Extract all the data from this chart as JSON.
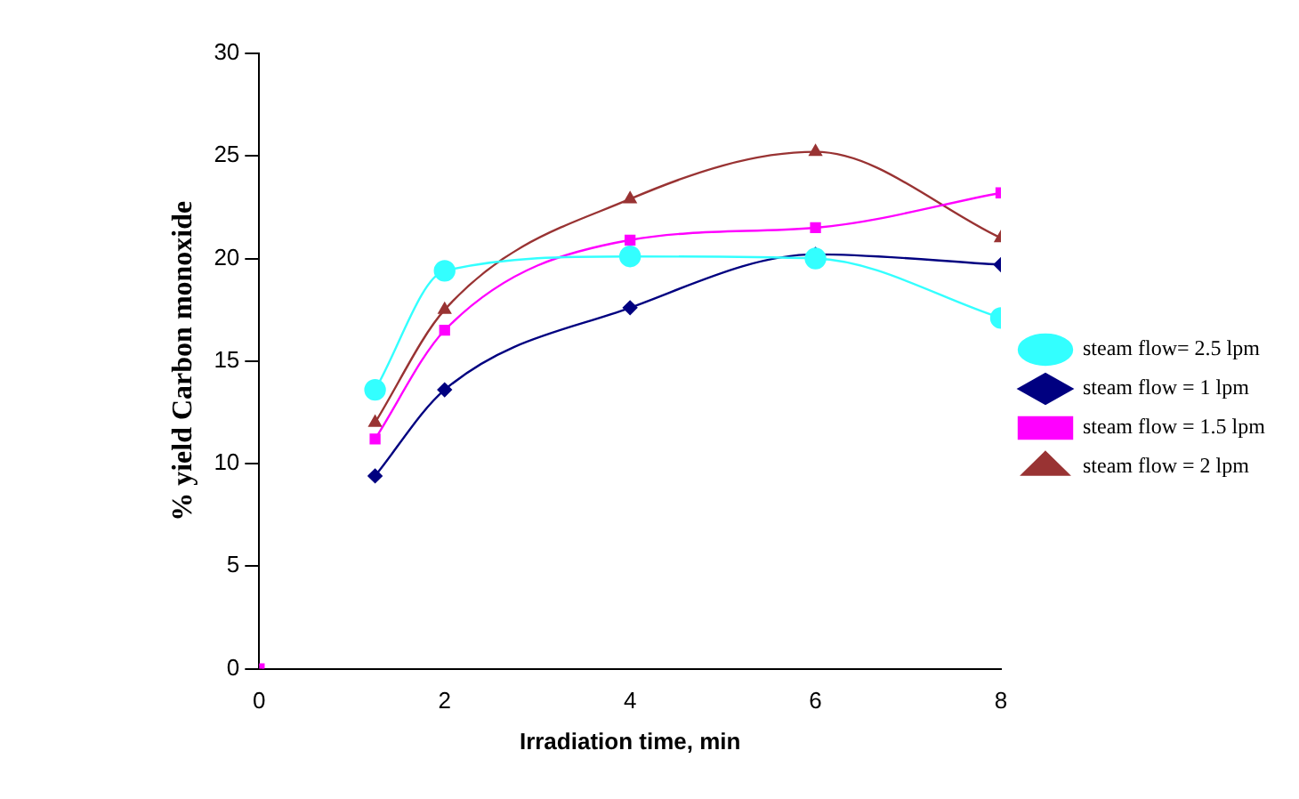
{
  "chart_data": {
    "type": "line",
    "xlabel": "Irradiation time, min",
    "ylabel": "% yield Carbon monoxide",
    "xlim": [
      0,
      8
    ],
    "xticks": [
      0,
      2,
      4,
      6,
      8
    ],
    "ylim": [
      0,
      30
    ],
    "yticks": [
      0,
      5,
      10,
      15,
      20,
      25,
      30
    ],
    "grid": false,
    "legend": "right",
    "line_style": "solid",
    "series": [
      {
        "name": "steam flow = 1 lpm",
        "color": "#000080",
        "marker": "diamond",
        "x": [
          1.25,
          2,
          4,
          6,
          8
        ],
        "values": [
          9.4,
          13.6,
          17.6,
          20.2,
          19.7
        ]
      },
      {
        "name": "steam flow = 1.5 lpm",
        "color": "#ff00ff",
        "marker": "square",
        "x": [
          1.25,
          2,
          4,
          6,
          8
        ],
        "values": [
          11.2,
          16.5,
          20.9,
          21.5,
          23.2
        ]
      },
      {
        "name": "steam flow = 2 lpm",
        "color": "#993333",
        "marker": "triangle",
        "x": [
          1.25,
          2,
          4,
          6,
          8
        ],
        "values": [
          12.0,
          17.5,
          22.9,
          25.2,
          21.0
        ]
      },
      {
        "name": "steam flow= 2.5 lpm",
        "color": "#33ffff",
        "marker": "circle",
        "x": [
          1.25,
          2,
          4,
          6,
          8
        ],
        "values": [
          13.6,
          19.4,
          20.1,
          20.0,
          17.1
        ]
      },
      {
        "type": "scatter",
        "color": "#ff00ff",
        "marker": "square",
        "x": [
          0
        ],
        "values": [
          0
        ]
      }
    ]
  }
}
